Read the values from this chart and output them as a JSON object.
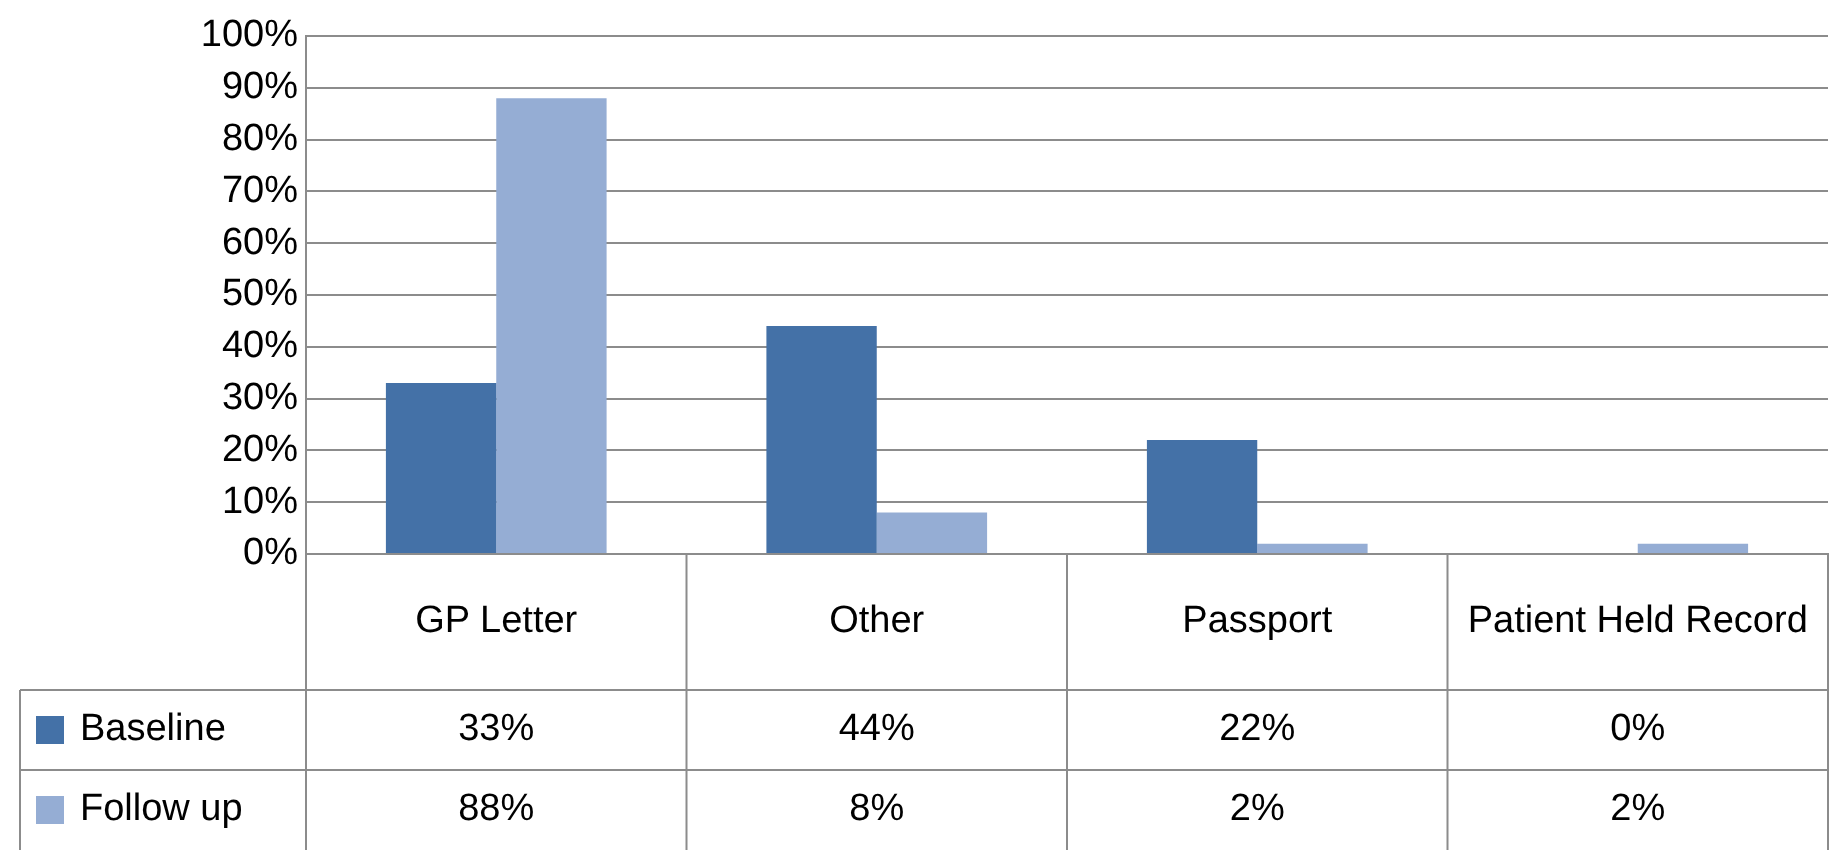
{
  "chart_data": {
    "type": "bar",
    "categories": [
      "GP Letter",
      "Other",
      "Passport",
      "Patient Held Record"
    ],
    "series": [
      {
        "name": "Baseline",
        "color": "#4471a7",
        "values": [
          33,
          44,
          22,
          0
        ],
        "value_labels": [
          "33%",
          "44%",
          "22%",
          "0%"
        ]
      },
      {
        "name": "Follow up",
        "color": "#95add4",
        "values": [
          88,
          8,
          2,
          2
        ],
        "value_labels": [
          "88%",
          "8%",
          "2%",
          "2%"
        ]
      }
    ],
    "ylim": [
      0,
      100
    ],
    "yticks": [
      {
        "value": 0,
        "label": "0%"
      },
      {
        "value": 10,
        "label": "10%"
      },
      {
        "value": 20,
        "label": "20%"
      },
      {
        "value": 30,
        "label": "30%"
      },
      {
        "value": 40,
        "label": "40%"
      },
      {
        "value": 50,
        "label": "50%"
      },
      {
        "value": 60,
        "label": "60%"
      },
      {
        "value": 70,
        "label": "70%"
      },
      {
        "value": 80,
        "label": "80%"
      },
      {
        "value": 90,
        "label": "90%"
      },
      {
        "value": 100,
        "label": "100%"
      }
    ],
    "grid": "y",
    "legend": "bottom"
  }
}
